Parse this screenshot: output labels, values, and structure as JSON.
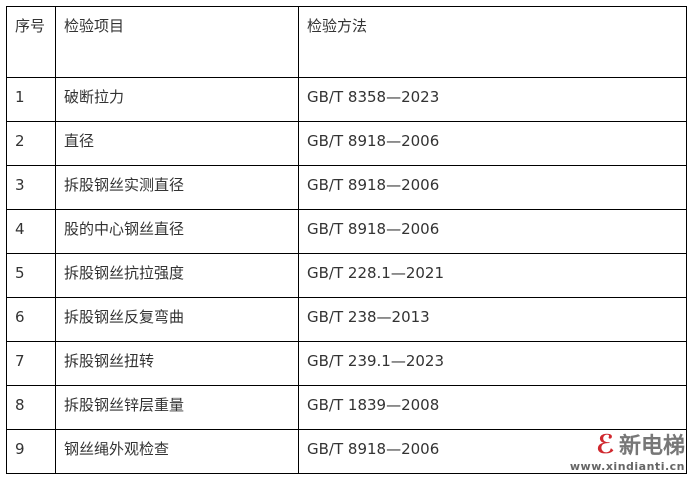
{
  "table": {
    "headers": [
      "序号",
      "检验项目",
      "检验方法"
    ],
    "rows": [
      [
        "1",
        "破断拉力",
        "GB/T 8358—2023"
      ],
      [
        "2",
        "直径",
        "GB/T 8918—2006"
      ],
      [
        "3",
        "拆股钢丝实测直径",
        "GB/T 8918—2006"
      ],
      [
        "4",
        "股的中心钢丝直径",
        "GB/T 8918—2006"
      ],
      [
        "5",
        "拆股钢丝抗拉强度",
        "GB/T 228.1—2021"
      ],
      [
        "6",
        "拆股钢丝反复弯曲",
        "GB/T 238—2013"
      ],
      [
        "7",
        "拆股钢丝扭转",
        "GB/T 239.1—2023"
      ],
      [
        "8",
        "拆股钢丝锌层重量",
        "GB/T 1839—2008"
      ],
      [
        "9",
        "钢丝绳外观检查",
        "GB/T 8918—2006"
      ]
    ]
  },
  "watermark": {
    "name": "新电梯",
    "url": "www.xindianti.cn",
    "color": "#d0282e"
  }
}
